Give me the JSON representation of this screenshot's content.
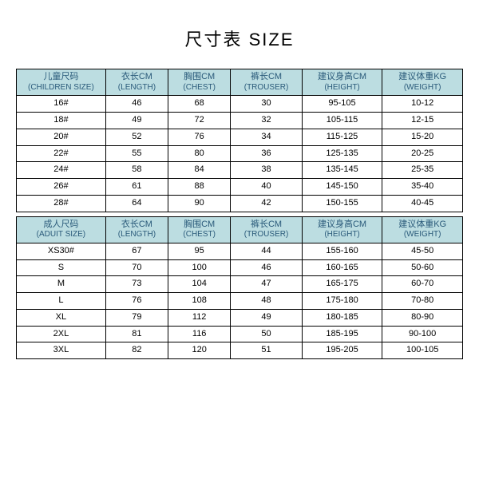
{
  "title": "尺寸表 SIZE",
  "colors": {
    "header_bg": "#bcdde1",
    "header_text": "#2a5a7a",
    "border": "#000000",
    "background": "#ffffff",
    "text": "#000000"
  },
  "columns": [
    {
      "cn": "儿童尺码",
      "en": "(CHILDREN SIZE)"
    },
    {
      "cn": "衣长CM",
      "en": "(LENGTH)"
    },
    {
      "cn": "胸围CM",
      "en": "(CHEST)"
    },
    {
      "cn": "裤长CM",
      "en": "(TROUSER)"
    },
    {
      "cn": "建议身高CM",
      "en": "(HEIGHT)"
    },
    {
      "cn": "建议体重KG",
      "en": "(WEIGHT)"
    }
  ],
  "children_rows": [
    [
      "16#",
      "46",
      "68",
      "30",
      "95-105",
      "10-12"
    ],
    [
      "18#",
      "49",
      "72",
      "32",
      "105-115",
      "12-15"
    ],
    [
      "20#",
      "52",
      "76",
      "34",
      "115-125",
      "15-20"
    ],
    [
      "22#",
      "55",
      "80",
      "36",
      "125-135",
      "20-25"
    ],
    [
      "24#",
      "58",
      "84",
      "38",
      "135-145",
      "25-35"
    ],
    [
      "26#",
      "61",
      "88",
      "40",
      "145-150",
      "35-40"
    ],
    [
      "28#",
      "64",
      "90",
      "42",
      "150-155",
      "40-45"
    ]
  ],
  "adult_columns": [
    {
      "cn": "成人尺码",
      "en": "(ADUIT SIZE)"
    },
    {
      "cn": "衣长CM",
      "en": "(LENGTH)"
    },
    {
      "cn": "胸围CM",
      "en": "(CHEST)"
    },
    {
      "cn": "裤长CM",
      "en": "(TROUSER)"
    },
    {
      "cn": "建议身高CM",
      "en": "(HEIGHT)"
    },
    {
      "cn": "建议体重KG",
      "en": "(WEIGHT)"
    }
  ],
  "adult_rows": [
    [
      "XS30#",
      "67",
      "95",
      "44",
      "155-160",
      "45-50"
    ],
    [
      "S",
      "70",
      "100",
      "46",
      "160-165",
      "50-60"
    ],
    [
      "M",
      "73",
      "104",
      "47",
      "165-175",
      "60-70"
    ],
    [
      "L",
      "76",
      "108",
      "48",
      "175-180",
      "70-80"
    ],
    [
      "XL",
      "79",
      "112",
      "49",
      "180-185",
      "80-90"
    ],
    [
      "2XL",
      "81",
      "116",
      "50",
      "185-195",
      "90-100"
    ],
    [
      "3XL",
      "82",
      "120",
      "51",
      "195-205",
      "100-105"
    ]
  ]
}
